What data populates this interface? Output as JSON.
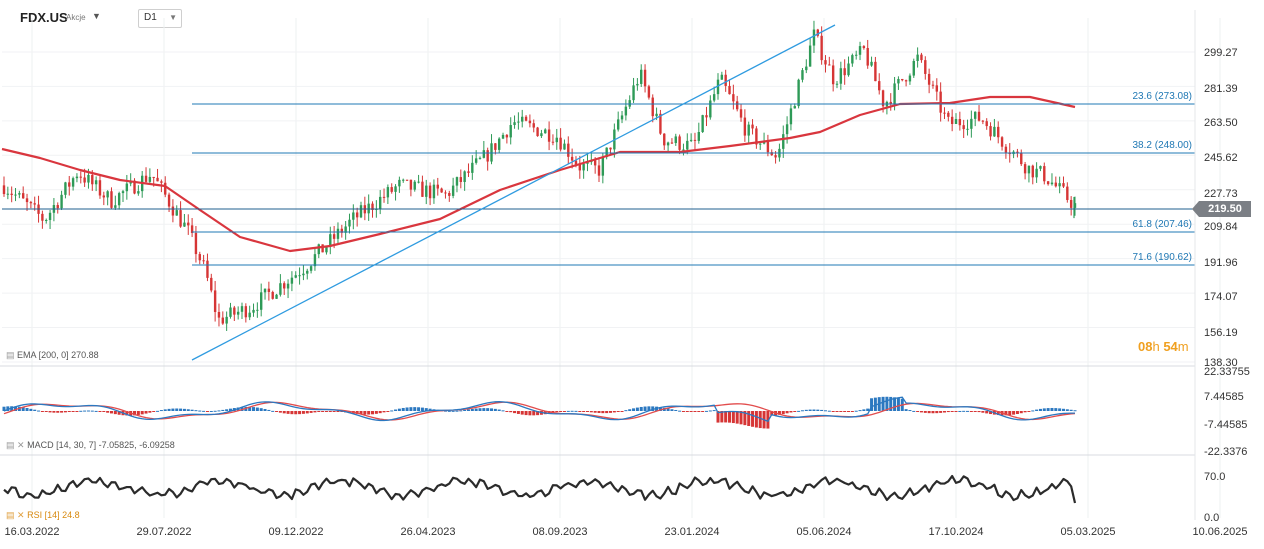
{
  "header": {
    "symbol": "FDX.US",
    "symbol_type": "Akcje",
    "timeframe": "D1"
  },
  "price_axis": [
    "299.27",
    "281.39",
    "263.50",
    "245.62",
    "227.73",
    "209.84",
    "191.96",
    "174.07",
    "156.19",
    "138.30"
  ],
  "current_price": "219.50",
  "fib_levels": [
    {
      "label": "23.6 (273.08)"
    },
    {
      "label": "38.2 (248.00)"
    },
    {
      "label": "61.8 (207.46)"
    },
    {
      "label": "71.6 (190.62)"
    }
  ],
  "indicators": {
    "ema": {
      "name": "EMA",
      "params": "[200, 0]",
      "value": "270.88"
    },
    "macd": {
      "name": "MACD",
      "params": "[14, 30, 7]",
      "value1": "-7.05825,",
      "value2": "-6.09258"
    },
    "rsi": {
      "name": "RSI",
      "params": "[14]",
      "value": "24.8"
    }
  },
  "macd_axis": [
    "22.33755",
    "7.44585",
    "-7.44585",
    "-22.3376"
  ],
  "rsi_axis": [
    "70.0",
    "0.0"
  ],
  "date_axis": [
    "16.03.2022",
    "29.07.2022",
    "09.12.2022",
    "26.04.2023",
    "08.09.2023",
    "23.01.2024",
    "05.06.2024",
    "17.10.2024",
    "05.03.2025",
    "10.06.2025"
  ],
  "countdown": {
    "hours": "08",
    "h_unit": "h",
    "minutes": "54",
    "m_unit": "m"
  },
  "colors": {
    "bull": "#2e9a57",
    "bear": "#d63535",
    "ema": "#d9363e",
    "fib": "#1f78b4",
    "trend": "#2f9be0",
    "rsi": "#2b2b2b",
    "macd_main": "#2b78c0",
    "macd_signal": "#e24c4c"
  }
}
